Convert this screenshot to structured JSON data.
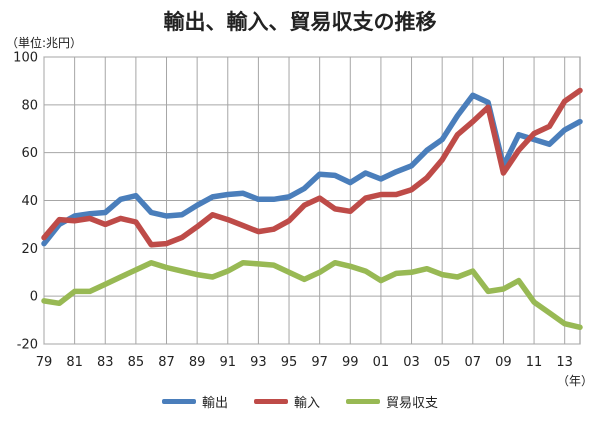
{
  "chart_data": {
    "type": "line",
    "title": "輸出、輸入、貿易収支の推移",
    "unit_label": "（単位:兆円）",
    "x_unit_label": "（年）",
    "ylim": [
      -20,
      100
    ],
    "yticks": [
      "100",
      "80",
      "60",
      "40",
      "20",
      "0",
      "-20"
    ],
    "ytick_values": [
      100,
      80,
      60,
      40,
      20,
      0,
      -20
    ],
    "x_tick_labels": [
      "79",
      "81",
      "83",
      "85",
      "87",
      "89",
      "91",
      "93",
      "95",
      "97",
      "99",
      "01",
      "03",
      "05",
      "07",
      "09",
      "11",
      "13"
    ],
    "x": [
      1979,
      1980,
      1981,
      1982,
      1983,
      1984,
      1985,
      1986,
      1987,
      1988,
      1989,
      1990,
      1991,
      1992,
      1993,
      1994,
      1995,
      1996,
      1997,
      1998,
      1999,
      2000,
      2001,
      2002,
      2003,
      2004,
      2005,
      2006,
      2007,
      2008,
      2009,
      2010,
      2011,
      2012,
      2013,
      2014
    ],
    "grid": true,
    "legend_position": "bottom",
    "series": [
      {
        "name": "輸出",
        "color": "#4a7ebb",
        "values": [
          22,
          30,
          33.5,
          34.5,
          35,
          40.5,
          42,
          35,
          33.5,
          34,
          38,
          41.5,
          42.5,
          43,
          40.5,
          40.5,
          41.5,
          45,
          51,
          50.5,
          47.5,
          51.5,
          49,
          52,
          54.5,
          61,
          65.5,
          75.5,
          84,
          81,
          54.5,
          67.5,
          65.5,
          63.5,
          69.5,
          73
        ]
      },
      {
        "name": "輸入",
        "color": "#be4b48",
        "values": [
          24.5,
          32,
          31.5,
          32.5,
          30,
          32.5,
          31,
          21.5,
          22,
          24.5,
          29,
          34,
          32,
          29.5,
          27,
          28,
          31.5,
          38,
          41,
          36.5,
          35.5,
          41,
          42.5,
          42.5,
          44.5,
          49.5,
          57,
          67.5,
          73,
          79,
          51.5,
          61,
          68,
          71,
          81.5,
          86
        ]
      },
      {
        "name": "貿易収支",
        "color": "#98b954",
        "values": [
          -2,
          -3,
          2,
          2,
          5,
          8,
          11,
          14,
          12,
          10.5,
          9,
          8,
          10.5,
          14,
          13.5,
          13,
          10,
          7,
          10,
          14,
          12.5,
          10.5,
          6.5,
          9.5,
          10,
          11.5,
          9,
          8,
          10.5,
          2,
          3,
          6.5,
          -2.5,
          -7,
          -11.5,
          -13
        ]
      }
    ]
  }
}
